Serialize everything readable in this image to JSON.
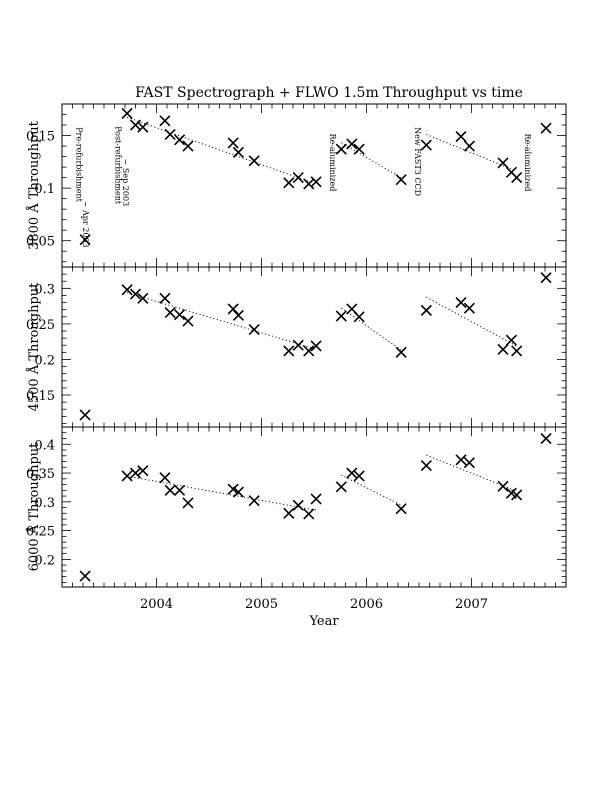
{
  "chart_data": {
    "type": "scatter",
    "title": "FAST Spectrograph + FLWO 1.5m Throughput vs time",
    "xlabel": "Year",
    "xlim": [
      2003.1,
      2007.9
    ],
    "xticks": [
      {
        "value": 2004,
        "label": "2004"
      },
      {
        "value": 2005,
        "label": "2005"
      },
      {
        "value": 2006,
        "label": "2006"
      },
      {
        "value": 2007,
        "label": "2007"
      }
    ],
    "x": [
      2003.32,
      2003.72,
      2003.8,
      2003.87,
      2004.08,
      2004.13,
      2004.22,
      2004.3,
      2004.73,
      2004.78,
      2004.93,
      2005.26,
      2005.35,
      2005.45,
      2005.52,
      2005.76,
      2005.86,
      2005.93,
      2006.33,
      2006.57,
      2006.9,
      2006.98,
      2007.3,
      2007.38,
      2007.43,
      2007.71
    ],
    "panels": [
      {
        "ylabel": "3800 Å Throughput",
        "ylim": [
          0.025,
          0.18
        ],
        "yticks": [
          {
            "value": 0.05,
            "label": "0.05"
          },
          {
            "value": 0.1,
            "label": "0.1"
          },
          {
            "value": 0.15,
            "label": "0.15"
          }
        ],
        "values": [
          0.051,
          0.171,
          0.16,
          0.158,
          0.164,
          0.151,
          0.146,
          0.14,
          0.143,
          0.134,
          0.126,
          0.105,
          0.11,
          0.104,
          0.106,
          0.137,
          0.142,
          0.137,
          0.108,
          0.141,
          0.149,
          0.14,
          0.124,
          0.115,
          0.11,
          0.157
        ]
      },
      {
        "ylabel": "4500 Å Throughput",
        "ylim": [
          0.105,
          0.33
        ],
        "yticks": [
          {
            "value": 0.15,
            "label": "0.15"
          },
          {
            "value": 0.2,
            "label": "0.2"
          },
          {
            "value": 0.25,
            "label": "0.25"
          },
          {
            "value": 0.3,
            "label": "0.3"
          }
        ],
        "values": [
          0.122,
          0.298,
          0.292,
          0.286,
          0.286,
          0.266,
          0.263,
          0.254,
          0.271,
          0.262,
          0.242,
          0.212,
          0.22,
          0.212,
          0.219,
          0.261,
          0.271,
          0.26,
          0.21,
          0.269,
          0.28,
          0.272,
          0.214,
          0.227,
          0.212,
          0.315
        ]
      },
      {
        "ylabel": "6000 Å Throughput",
        "ylim": [
          0.152,
          0.43
        ],
        "yticks": [
          {
            "value": 0.2,
            "label": "0.2"
          },
          {
            "value": 0.25,
            "label": "0.25"
          },
          {
            "value": 0.3,
            "label": "0.3"
          },
          {
            "value": 0.35,
            "label": "0.35"
          },
          {
            "value": 0.4,
            "label": "0.4"
          }
        ],
        "values": [
          0.171,
          0.345,
          0.35,
          0.354,
          0.342,
          0.32,
          0.32,
          0.298,
          0.322,
          0.317,
          0.302,
          0.28,
          0.294,
          0.279,
          0.305,
          0.326,
          0.35,
          0.345,
          0.288,
          0.363,
          0.373,
          0.368,
          0.327,
          0.315,
          0.312,
          0.41
        ]
      }
    ],
    "trendlines": [
      [
        2003.72,
        2005.52
      ],
      [
        2005.76,
        2006.33
      ],
      [
        2006.57,
        2007.43
      ]
    ],
    "annotations": [
      {
        "text": "Pre-refurbishment",
        "x": 2003.24,
        "panel": 0,
        "y": 0.158
      },
      {
        "text": "~ Apr 2003",
        "x": 2003.3,
        "panel": 0,
        "y": 0.088
      },
      {
        "text": "Post-refurbishment",
        "x": 2003.61,
        "panel": 0,
        "y": 0.159
      },
      {
        "text": "~ Sep 2003",
        "x": 2003.68,
        "panel": 0,
        "y": 0.128
      },
      {
        "text": "Re-aluminized",
        "x": 2005.65,
        "panel": 0,
        "y": 0.152
      },
      {
        "text": "New FAST3 CCD",
        "x": 2006.46,
        "panel": 0,
        "y": 0.158
      },
      {
        "text": "Re-aluminized",
        "x": 2007.51,
        "panel": 0,
        "y": 0.152
      }
    ],
    "grid": false,
    "legend": "none"
  }
}
